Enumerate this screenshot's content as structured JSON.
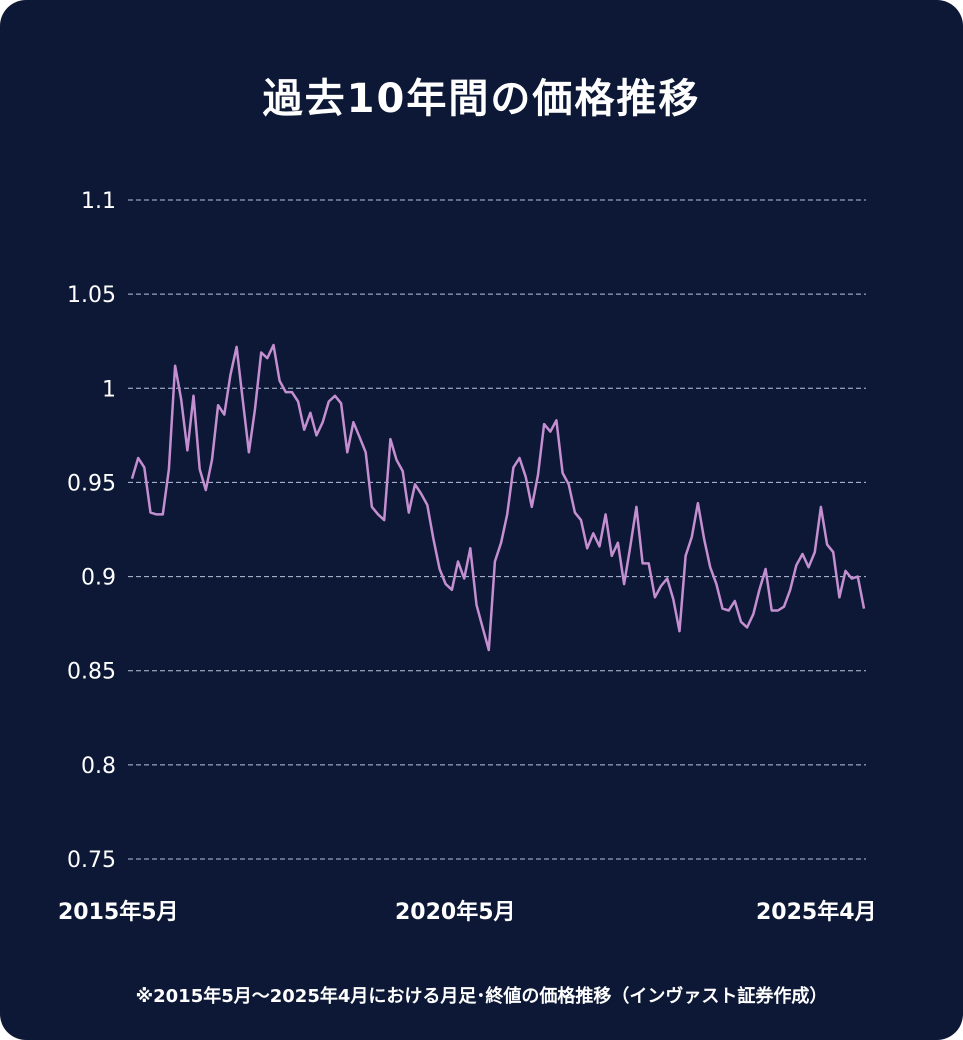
{
  "chart_data": {
    "type": "line",
    "title": "過去10年間の価格推移",
    "xlabel": "",
    "ylabel": "",
    "ylim": [
      0.75,
      1.1
    ],
    "y_ticks": [
      "1.1",
      "1.05",
      "1",
      "0.95",
      "0.9",
      "0.85",
      "0.8",
      "0.75"
    ],
    "y_tick_values": [
      1.1,
      1.05,
      1.0,
      0.95,
      0.9,
      0.85,
      0.8,
      0.75
    ],
    "x_ticks": [
      "2015年5月",
      "2020年5月",
      "2025年4月"
    ],
    "grid": "horizontal dashed",
    "line_color": "#c48fd0",
    "background_color": "#0c1836",
    "values": [
      0.952,
      0.963,
      0.958,
      0.934,
      0.933,
      0.933,
      0.957,
      1.012,
      0.994,
      0.967,
      0.996,
      0.957,
      0.946,
      0.962,
      0.991,
      0.986,
      1.007,
      1.022,
      0.994,
      0.966,
      0.989,
      1.019,
      1.016,
      1.023,
      1.004,
      0.998,
      0.998,
      0.993,
      0.978,
      0.987,
      0.975,
      0.982,
      0.993,
      0.996,
      0.992,
      0.966,
      0.982,
      0.974,
      0.966,
      0.937,
      0.933,
      0.93,
      0.973,
      0.962,
      0.956,
      0.934,
      0.949,
      0.944,
      0.938,
      0.92,
      0.904,
      0.896,
      0.893,
      0.908,
      0.899,
      0.915,
      0.885,
      0.873,
      0.861,
      0.908,
      0.918,
      0.933,
      0.958,
      0.963,
      0.953,
      0.937,
      0.954,
      0.981,
      0.977,
      0.983,
      0.955,
      0.949,
      0.934,
      0.93,
      0.915,
      0.923,
      0.916,
      0.933,
      0.911,
      0.918,
      0.896,
      0.916,
      0.937,
      0.907,
      0.907,
      0.889,
      0.895,
      0.899,
      0.888,
      0.871,
      0.911,
      0.921,
      0.939,
      0.92,
      0.905,
      0.896,
      0.883,
      0.882,
      0.887,
      0.876,
      0.873,
      0.88,
      0.893,
      0.904,
      0.882,
      0.882,
      0.884,
      0.893,
      0.906,
      0.912,
      0.905,
      0.913,
      0.937,
      0.917,
      0.913,
      0.889,
      0.903,
      0.899,
      0.9,
      0.883
    ]
  },
  "footnote": "※2015年5月～2025年4月における月足･終値の価格推移（インヴァスト証券作成）"
}
